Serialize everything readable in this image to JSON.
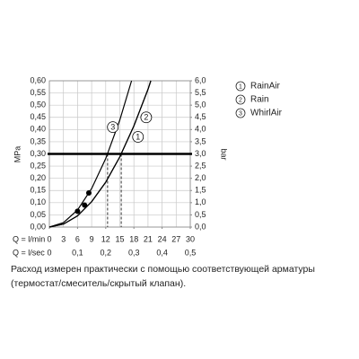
{
  "chart_data": {
    "type": "line",
    "ylabel": "MPa",
    "y2label": "bar",
    "xlabel": "Q = l/min",
    "x2label": "Q = l/sec",
    "xlim": [
      0,
      30
    ],
    "xticks": [
      0,
      3,
      6,
      9,
      12,
      15,
      18,
      21,
      24,
      27,
      30
    ],
    "x2lim": [
      0,
      0.5
    ],
    "x2ticks": [
      0,
      {
        "value": 0.1,
        "label": "0,1"
      },
      {
        "value": 0.2,
        "label": "0,2"
      },
      {
        "value": 0.3,
        "label": "0,3"
      },
      {
        "value": 0.4,
        "label": "0,4"
      },
      {
        "value": 0.5,
        "label": "0,5"
      }
    ],
    "ylim": [
      0,
      0.6
    ],
    "yticks": [
      {
        "value": 0,
        "label": "0,00"
      },
      {
        "value": 0.05,
        "label": "0,05"
      },
      {
        "value": 0.1,
        "label": "0,10"
      },
      {
        "value": 0.15,
        "label": "0,15"
      },
      {
        "value": 0.2,
        "label": "0,20"
      },
      {
        "value": 0.25,
        "label": "0,25"
      },
      {
        "value": 0.3,
        "label": "0,30"
      },
      {
        "value": 0.35,
        "label": "0,35"
      },
      {
        "value": 0.4,
        "label": "0,40"
      },
      {
        "value": 0.45,
        "label": "0,45"
      },
      {
        "value": 0.5,
        "label": "0,50"
      },
      {
        "value": 0.55,
        "label": "0,55"
      },
      {
        "value": 0.6,
        "label": "0,60"
      }
    ],
    "y2lim": [
      0,
      6
    ],
    "y2ticks": [
      {
        "value": 0,
        "label": "0,0"
      },
      {
        "value": 0.5,
        "label": "0,5"
      },
      {
        "value": 1,
        "label": "1,0"
      },
      {
        "value": 1.5,
        "label": "1,5"
      },
      {
        "value": 2,
        "label": "2,0"
      },
      {
        "value": 2.5,
        "label": "2,5"
      },
      {
        "value": 3,
        "label": "3,0"
      },
      {
        "value": 3.5,
        "label": "3,5"
      },
      {
        "value": 4,
        "label": "4,0"
      },
      {
        "value": 4.5,
        "label": "4,5"
      },
      {
        "value": 5,
        "label": "5,0"
      },
      {
        "value": 5.5,
        "label": "5,5"
      },
      {
        "value": 6,
        "label": "6,0"
      }
    ],
    "grid": true,
    "color": "#000000",
    "reference_y": 0.3,
    "reference_x": [
      12.4,
      15.3
    ],
    "series": [
      {
        "name": "RainAir",
        "number": "1",
        "x": [
          0,
          3,
          6,
          9,
          12,
          15,
          18,
          21,
          21.6
        ],
        "values": [
          0,
          0.012,
          0.046,
          0.104,
          0.184,
          0.288,
          0.415,
          0.565,
          0.6
        ]
      },
      {
        "name": "Rain",
        "number": "2",
        "x": [
          0,
          3,
          6,
          9,
          12,
          15,
          18,
          21,
          21.6
        ],
        "values": [
          0,
          0.012,
          0.046,
          0.104,
          0.184,
          0.288,
          0.415,
          0.565,
          0.6
        ]
      },
      {
        "name": "WhirlAir",
        "number": "3",
        "x": [
          0,
          3,
          6,
          9,
          12,
          15,
          17.5
        ],
        "values": [
          0,
          0.018,
          0.07,
          0.158,
          0.281,
          0.439,
          0.6
        ]
      }
    ],
    "points": {
      "x": [
        6,
        7.5,
        8.4
      ],
      "values": [
        0.065,
        0.09,
        0.14
      ]
    },
    "caption": "Расход измерен практически с помощью соответствующей арматуры (термостат/смеситель/скрытый клапан)."
  }
}
